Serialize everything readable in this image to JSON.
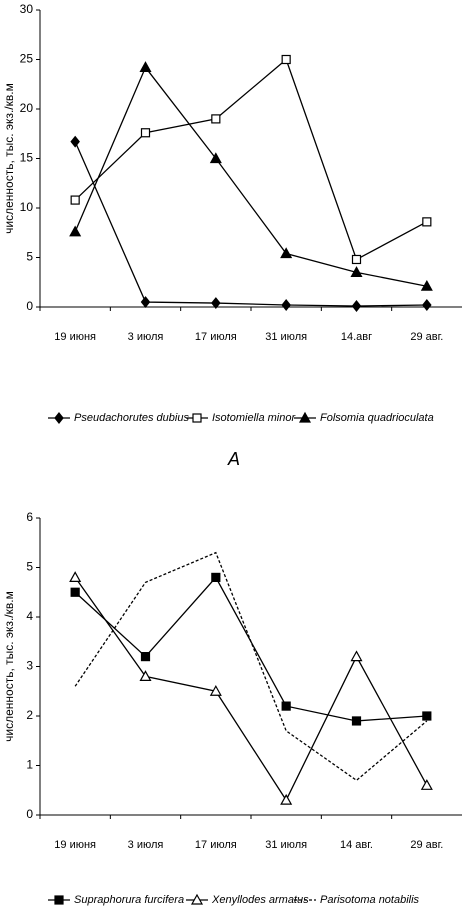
{
  "chart_data": [
    {
      "type": "line",
      "y_label": "численность, тыс. экз./кв.м",
      "categories": [
        "19 июня",
        "3 июля",
        "17 июля",
        "31 июля",
        "14.авг",
        "29 авг."
      ],
      "ylim": [
        0,
        30
      ],
      "yticks": [
        0,
        5,
        10,
        15,
        20,
        25,
        30
      ],
      "series": [
        {
          "name": "Pseudachorutes dubius",
          "color": "#000000",
          "marker": "diamond",
          "marker_fill": true,
          "dashed": false,
          "values": [
            16.7,
            0.5,
            0.4,
            0.2,
            0.1,
            0.2
          ]
        },
        {
          "name": "Isotomiella minor",
          "color": "#000000",
          "marker": "square",
          "marker_fill": false,
          "dashed": false,
          "values": [
            10.8,
            17.6,
            19.0,
            25.0,
            4.8,
            8.6
          ]
        },
        {
          "name": "Folsomia quadrioculata",
          "color": "#000000",
          "marker": "triangle",
          "marker_fill": true,
          "dashed": false,
          "values": [
            7.6,
            24.2,
            15.0,
            5.4,
            3.5,
            2.1
          ]
        }
      ],
      "caption": "А"
    },
    {
      "type": "line",
      "y_label": "численность, тыс. экз./кв.м",
      "categories": [
        "19 июня",
        "3 июля",
        "17 июля",
        "31 июля",
        "14 авг.",
        "29 авг."
      ],
      "ylim": [
        0,
        6
      ],
      "yticks": [
        0,
        1,
        2,
        3,
        4,
        5,
        6
      ],
      "series": [
        {
          "name": "Supraphorura furcifera",
          "color": "#000000",
          "marker": "square",
          "marker_fill": true,
          "dashed": false,
          "values": [
            4.5,
            3.2,
            4.8,
            2.2,
            1.9,
            2.0
          ]
        },
        {
          "name": "Xenyllodes armatus",
          "color": "#000000",
          "marker": "triangle",
          "marker_fill": false,
          "dashed": false,
          "values": [
            4.8,
            2.8,
            2.5,
            0.3,
            3.2,
            0.6
          ]
        },
        {
          "name": "Parisotoma notabilis",
          "color": "#000000",
          "marker": "none",
          "marker_fill": false,
          "dashed": true,
          "values": [
            2.6,
            4.7,
            5.3,
            1.7,
            0.7,
            1.9
          ]
        }
      ]
    }
  ]
}
